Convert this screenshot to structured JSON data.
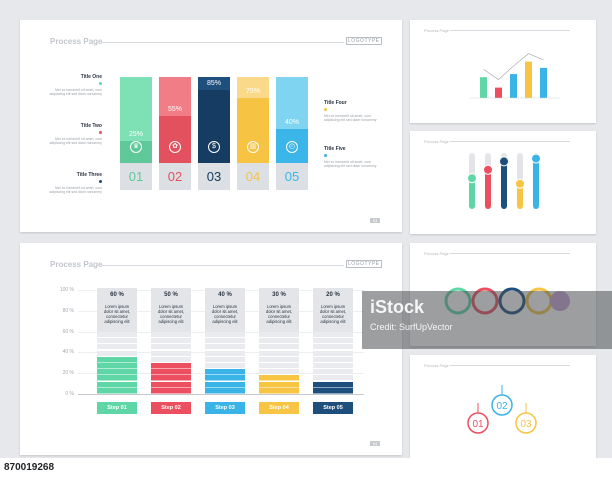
{
  "slide1": {
    "title": "Process Page",
    "logo": "LOGOTYPE",
    "page": "03",
    "lorem": "Mei ex hendrerit sit amet, cum adipiscing elit sed diam nonummy",
    "left_titles": [
      "Title One",
      "Title Two",
      "Title Three"
    ],
    "right_titles": [
      "Title Four",
      "Title Five"
    ],
    "steps": [
      {
        "num": "01",
        "pct": "25%",
        "color": "#7ee0b5",
        "dark": "#5fc999",
        "value": 25,
        "icon": "trophy-icon",
        "glyph": "♛"
      },
      {
        "num": "02",
        "pct": "55%",
        "color": "#f17d86",
        "dark": "#e3505e",
        "value": 55,
        "icon": "gears-icon",
        "glyph": "✿"
      },
      {
        "num": "03",
        "pct": "85%",
        "color": "#1f4f7d",
        "dark": "#173c61",
        "value": 85,
        "icon": "dollar-icon",
        "glyph": "$"
      },
      {
        "num": "04",
        "pct": "75%",
        "color": "#fbd98a",
        "dark": "#f6c343",
        "value": 75,
        "icon": "chart-icon",
        "glyph": "▥"
      },
      {
        "num": "05",
        "pct": "40%",
        "color": "#7fd4f2",
        "dark": "#3cb5e8",
        "value": 40,
        "icon": "stopwatch-icon",
        "glyph": "◴"
      }
    ]
  },
  "slide2": {
    "title": "Process Page",
    "logo": "LOGOTYPE",
    "page": "04",
    "axis": [
      "100 %",
      "80 %",
      "60 %",
      "40 %",
      "20 %",
      "0 %"
    ],
    "steps": [
      {
        "label": "Step 01",
        "pct": "60 %",
        "value": 60,
        "color": "#5fd6a6"
      },
      {
        "label": "Step 02",
        "pct": "50 %",
        "value": 50,
        "color": "#ec4f5f"
      },
      {
        "label": "Step 03",
        "pct": "40 %",
        "value": 40,
        "color": "#3ab3e6"
      },
      {
        "label": "Step 04",
        "pct": "30 %",
        "value": 30,
        "color": "#f7c444"
      },
      {
        "label": "Step 05",
        "pct": "20 %",
        "value": 20,
        "color": "#1e4f7c"
      }
    ],
    "body_lines": [
      "Lorem ipsum",
      "dolor sit amet,",
      "connectetur",
      "adipiscing elit"
    ]
  },
  "thumbs": {
    "title": "Process Page",
    "chart_values": [
      40,
      20,
      46,
      70,
      58
    ],
    "chart_colors": [
      "#5fd6a6",
      "#ec4f5f",
      "#3ab3e6",
      "#f7c444",
      "#3ab3e6"
    ],
    "slider_levels": [
      0.55,
      0.7,
      0.85,
      0.45,
      0.9
    ],
    "slider_colors": [
      "#5fd6a6",
      "#ec4f5f",
      "#1e4f7c",
      "#f7c444",
      "#3ab3e6"
    ],
    "circles": [
      "01",
      "02",
      "03"
    ]
  },
  "watermark": {
    "text": "iStock",
    "credit": "Credit: SurfUpVector",
    "id": "870019268"
  }
}
